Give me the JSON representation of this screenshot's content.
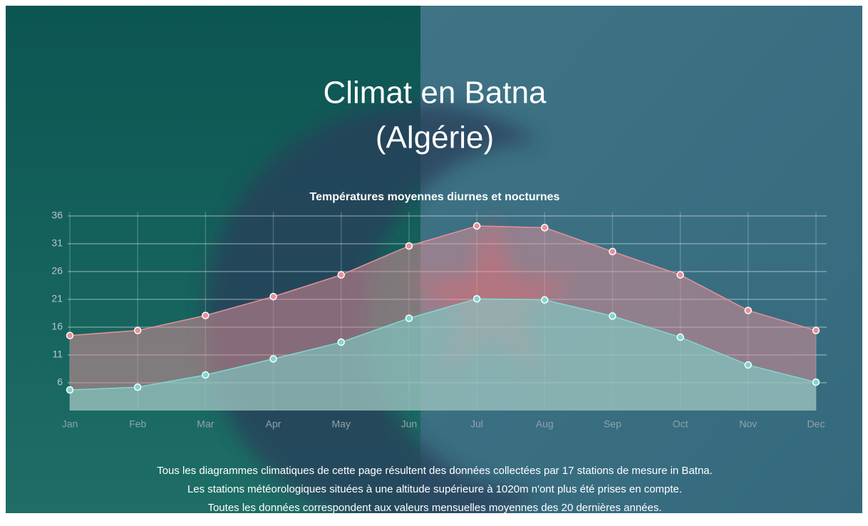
{
  "header": {
    "title": "Climat en Batna",
    "subtitle": "(Algérie)"
  },
  "chart_data": {
    "type": "area",
    "title": "Températures moyennes diurnes et nocturnes",
    "categories": [
      "Jan",
      "Feb",
      "Mar",
      "Apr",
      "May",
      "Jun",
      "Jul",
      "Aug",
      "Sep",
      "Oct",
      "Nov",
      "Dec"
    ],
    "series": [
      {
        "color": "#e8909a",
        "values": [
          14.5,
          15.4,
          18.1,
          21.5,
          25.4,
          30.6,
          34.2,
          33.9,
          29.6,
          25.4,
          19.0,
          15.4
        ]
      },
      {
        "color": "#7fd8d0",
        "values": [
          4.7,
          5.2,
          7.4,
          10.3,
          13.3,
          17.6,
          21.1,
          20.9,
          18.0,
          14.2,
          9.2,
          6.1
        ]
      }
    ],
    "ylim": [
      1,
      36
    ],
    "yticks": [
      36,
      31,
      26,
      21,
      16,
      11,
      6
    ],
    "grid": true
  },
  "footer": [
    "Tous les diagrammes climatiques de cette page résultent des données collectées par 17 stations de mesure in Batna.",
    "Les stations météorologiques situées à une altitude supérieure à 1020m n'ont plus été prises en compte.",
    "Toutes les données correspondent aux valeurs mensuelles moyennes des 20 dernières années."
  ]
}
